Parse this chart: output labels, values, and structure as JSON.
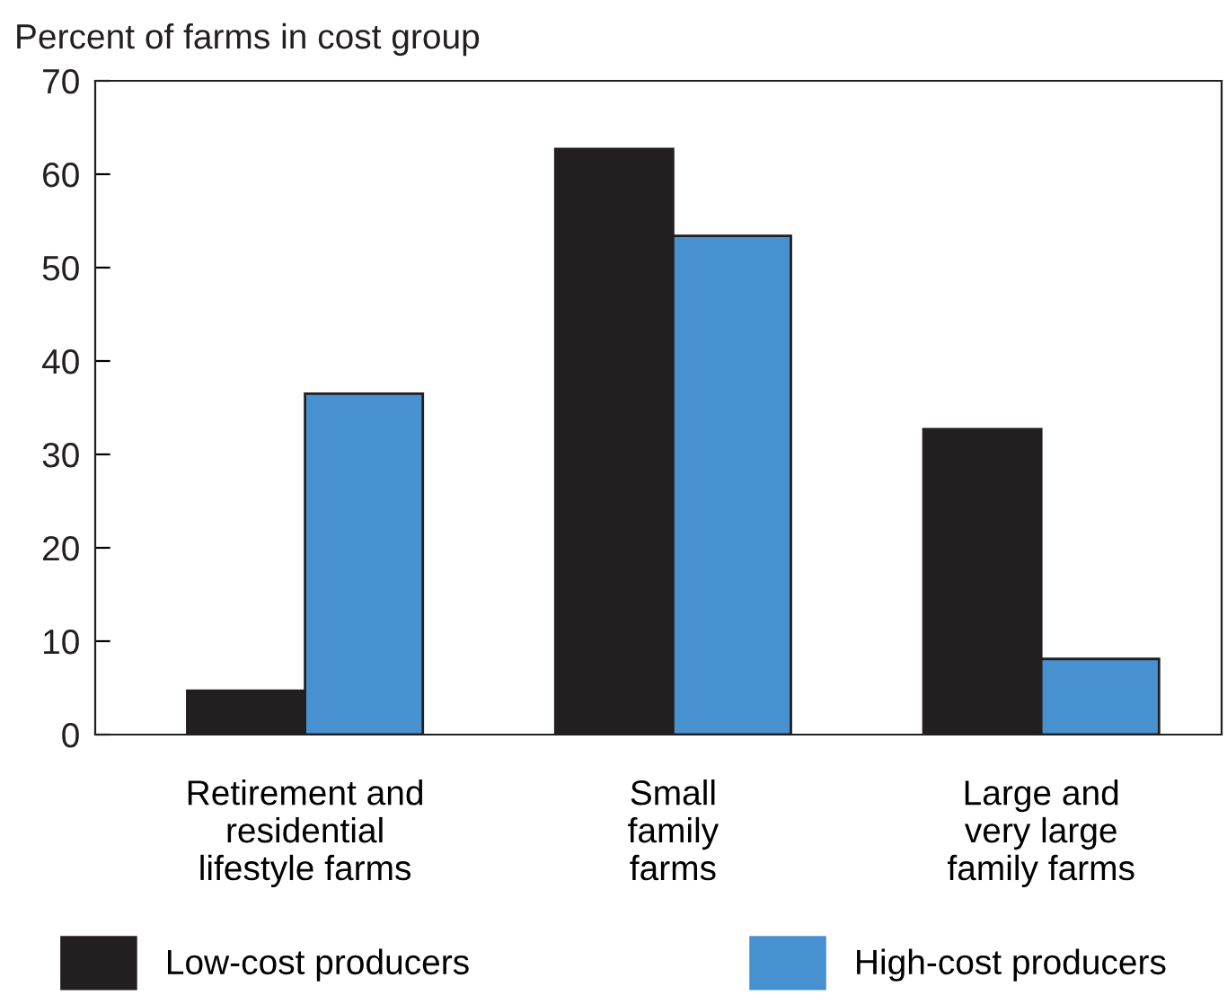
{
  "chart_data": {
    "type": "bar",
    "ylabel": "Percent of farms in cost group",
    "categories": [
      "Retirement and\nresidential\nlifestyle farms",
      "Small\nfamily\nfarms",
      "Large and\nvery large\nfamily farms"
    ],
    "series": [
      {
        "name": "Low-cost producers",
        "color": "#231f20",
        "values": [
          4.7,
          62.7,
          32.7
        ]
      },
      {
        "name": "High-cost producers",
        "color": "#4891d0",
        "values": [
          36.5,
          53.4,
          8.1
        ]
      }
    ],
    "ylim": [
      0,
      70
    ],
    "yticks": [
      0,
      10,
      20,
      30,
      40,
      50,
      60,
      70
    ],
    "grid": false,
    "legend": "bottom"
  }
}
